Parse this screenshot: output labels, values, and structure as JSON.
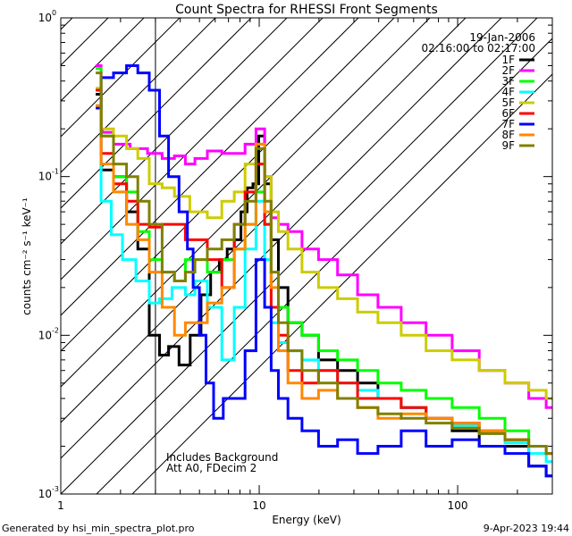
{
  "chart_data": {
    "type": "line",
    "title": "Count Spectra for RHESSI Front Segments",
    "xlabel": "Energy (keV)",
    "ylabel": "counts cm⁻² s⁻¹ keV⁻¹",
    "xscale": "log",
    "yscale": "log",
    "xlim": [
      1,
      300
    ],
    "ylim": [
      0.001,
      1
    ],
    "x_ticks": [
      {
        "value": 1,
        "label": "1"
      },
      {
        "value": 10,
        "label": "10"
      },
      {
        "value": 100,
        "label": "100"
      }
    ],
    "y_ticks": [
      {
        "value": 0.001,
        "base": "10",
        "exp": "-3"
      },
      {
        "value": 0.01,
        "base": "10",
        "exp": "-2"
      },
      {
        "value": 0.1,
        "base": "10",
        "exp": "-1"
      },
      {
        "value": 1,
        "base": "10",
        "exp": "0"
      }
    ],
    "hatch_upper_energy_keV": 3,
    "date": "19-Jan-2006",
    "time_range": "02:16:00 to 02:17:00",
    "annotations": [
      "Includes Background",
      "Att A0, FDecim 2"
    ],
    "series": [
      {
        "name": "1F",
        "color": "#000000",
        "values": [
          [
            1.5,
            0.33
          ],
          [
            1.7,
            0.11
          ],
          [
            2.0,
            0.1
          ],
          [
            2.3,
            0.06
          ],
          [
            2.6,
            0.035
          ],
          [
            3.0,
            0.01
          ],
          [
            3.3,
            0.0075
          ],
          [
            3.7,
            0.0085
          ],
          [
            4.2,
            0.0065
          ],
          [
            4.8,
            0.01
          ],
          [
            5.4,
            0.018
          ],
          [
            6,
            0.025
          ],
          [
            6.6,
            0.03
          ],
          [
            7.2,
            0.035
          ],
          [
            7.8,
            0.04
          ],
          [
            8.4,
            0.06
          ],
          [
            9,
            0.085
          ],
          [
            9.6,
            0.09
          ],
          [
            10.3,
            0.18
          ],
          [
            11,
            0.09
          ],
          [
            12,
            0.04
          ],
          [
            13,
            0.02
          ],
          [
            15,
            0.012
          ],
          [
            18,
            0.01
          ],
          [
            22,
            0.007
          ],
          [
            28,
            0.006
          ],
          [
            35,
            0.005
          ],
          [
            45,
            0.004
          ],
          [
            60,
            0.0035
          ],
          [
            80,
            0.003
          ],
          [
            110,
            0.0025
          ],
          [
            150,
            0.002
          ],
          [
            200,
            0.002
          ],
          [
            260,
            0.0015
          ],
          [
            300,
            0.0013
          ]
        ]
      },
      {
        "name": "2F",
        "color": "#ff00ff",
        "values": [
          [
            1.5,
            0.5
          ],
          [
            1.7,
            0.19
          ],
          [
            2.0,
            0.16
          ],
          [
            2.5,
            0.15
          ],
          [
            3,
            0.14
          ],
          [
            3.5,
            0.13
          ],
          [
            4,
            0.135
          ],
          [
            4.5,
            0.12
          ],
          [
            5,
            0.13
          ],
          [
            6,
            0.145
          ],
          [
            7,
            0.14
          ],
          [
            8,
            0.14
          ],
          [
            9,
            0.16
          ],
          [
            10.3,
            0.2
          ],
          [
            11,
            0.1
          ],
          [
            12,
            0.055
          ],
          [
            13,
            0.05
          ],
          [
            15,
            0.045
          ],
          [
            18,
            0.035
          ],
          [
            22,
            0.03
          ],
          [
            28,
            0.024
          ],
          [
            35,
            0.018
          ],
          [
            45,
            0.015
          ],
          [
            60,
            0.012
          ],
          [
            80,
            0.01
          ],
          [
            110,
            0.008
          ],
          [
            150,
            0.006
          ],
          [
            200,
            0.005
          ],
          [
            260,
            0.004
          ],
          [
            300,
            0.0035
          ]
        ]
      },
      {
        "name": "3F",
        "color": "#00ff00",
        "values": [
          [
            1.5,
            0.48
          ],
          [
            1.7,
            0.18
          ],
          [
            2.0,
            0.1
          ],
          [
            2.3,
            0.08
          ],
          [
            2.6,
            0.045
          ],
          [
            3,
            0.03
          ],
          [
            3.5,
            0.025
          ],
          [
            4,
            0.022
          ],
          [
            4.5,
            0.03
          ],
          [
            5,
            0.03
          ],
          [
            6,
            0.025
          ],
          [
            7,
            0.03
          ],
          [
            8,
            0.035
          ],
          [
            9,
            0.05
          ],
          [
            10.3,
            0.08
          ],
          [
            11,
            0.05
          ],
          [
            12,
            0.025
          ],
          [
            13,
            0.015
          ],
          [
            15,
            0.012
          ],
          [
            18,
            0.01
          ],
          [
            22,
            0.008
          ],
          [
            28,
            0.007
          ],
          [
            35,
            0.006
          ],
          [
            45,
            0.005
          ],
          [
            60,
            0.0045
          ],
          [
            80,
            0.004
          ],
          [
            110,
            0.0035
          ],
          [
            150,
            0.003
          ],
          [
            200,
            0.0025
          ],
          [
            260,
            0.002
          ],
          [
            300,
            0.0018
          ]
        ]
      },
      {
        "name": "4F",
        "color": "#00ffff",
        "values": [
          [
            1.5,
            0.28
          ],
          [
            1.7,
            0.07
          ],
          [
            1.9,
            0.043
          ],
          [
            2.2,
            0.03
          ],
          [
            2.6,
            0.022
          ],
          [
            3.0,
            0.016
          ],
          [
            3.3,
            0.017
          ],
          [
            4,
            0.02
          ],
          [
            4.5,
            0.018
          ],
          [
            5,
            0.022
          ],
          [
            6,
            0.015
          ],
          [
            7,
            0.007
          ],
          [
            8,
            0.015
          ],
          [
            9,
            0.035
          ],
          [
            10.3,
            0.07
          ],
          [
            11,
            0.03
          ],
          [
            12,
            0.012
          ],
          [
            13,
            0.009
          ],
          [
            15,
            0.008
          ],
          [
            18,
            0.007
          ],
          [
            22,
            0.006
          ],
          [
            28,
            0.005
          ],
          [
            35,
            0.0045
          ],
          [
            45,
            0.004
          ],
          [
            60,
            0.0035
          ],
          [
            80,
            0.003
          ],
          [
            110,
            0.0027
          ],
          [
            150,
            0.0024
          ],
          [
            200,
            0.0021
          ],
          [
            260,
            0.0018
          ],
          [
            300,
            0.0016
          ]
        ]
      },
      {
        "name": "5F",
        "color": "#cccc00",
        "values": [
          [
            1.5,
            0.36
          ],
          [
            1.7,
            0.2
          ],
          [
            2.0,
            0.18
          ],
          [
            2.3,
            0.15
          ],
          [
            2.6,
            0.13
          ],
          [
            3,
            0.09
          ],
          [
            3.5,
            0.085
          ],
          [
            4,
            0.075
          ],
          [
            5,
            0.06
          ],
          [
            6,
            0.055
          ],
          [
            7,
            0.07
          ],
          [
            8,
            0.08
          ],
          [
            9,
            0.12
          ],
          [
            10.3,
            0.16
          ],
          [
            11,
            0.1
          ],
          [
            12,
            0.06
          ],
          [
            13,
            0.045
          ],
          [
            15,
            0.035
          ],
          [
            18,
            0.025
          ],
          [
            22,
            0.02
          ],
          [
            28,
            0.017
          ],
          [
            35,
            0.014
          ],
          [
            45,
            0.012
          ],
          [
            60,
            0.01
          ],
          [
            80,
            0.008
          ],
          [
            110,
            0.007
          ],
          [
            150,
            0.006
          ],
          [
            200,
            0.005
          ],
          [
            260,
            0.0045
          ],
          [
            300,
            0.004
          ]
        ]
      },
      {
        "name": "6F",
        "color": "#ff0000",
        "values": [
          [
            1.5,
            0.35
          ],
          [
            1.7,
            0.14
          ],
          [
            2.0,
            0.09
          ],
          [
            2.3,
            0.07
          ],
          [
            2.6,
            0.05
          ],
          [
            3.0,
            0.048
          ],
          [
            3.5,
            0.05
          ],
          [
            4,
            0.05
          ],
          [
            4.5,
            0.04
          ],
          [
            5,
            0.04
          ],
          [
            6,
            0.03
          ],
          [
            7,
            0.02
          ],
          [
            8,
            0.05
          ],
          [
            9,
            0.08
          ],
          [
            10.3,
            0.12
          ],
          [
            11,
            0.05
          ],
          [
            12,
            0.015
          ],
          [
            13,
            0.01
          ],
          [
            15,
            0.006
          ],
          [
            18,
            0.005
          ],
          [
            22,
            0.006
          ],
          [
            28,
            0.005
          ],
          [
            35,
            0.004
          ],
          [
            45,
            0.004
          ],
          [
            60,
            0.0035
          ],
          [
            80,
            0.003
          ],
          [
            110,
            0.0028
          ],
          [
            150,
            0.0025
          ],
          [
            200,
            0.0022
          ],
          [
            260,
            0.002
          ],
          [
            300,
            0.0018
          ]
        ]
      },
      {
        "name": "7F",
        "color": "#0000ff",
        "values": [
          [
            1.5,
            0.27
          ],
          [
            1.7,
            0.42
          ],
          [
            2.0,
            0.45
          ],
          [
            2.3,
            0.5
          ],
          [
            2.6,
            0.45
          ],
          [
            3.0,
            0.35
          ],
          [
            3.3,
            0.18
          ],
          [
            3.7,
            0.1
          ],
          [
            4.2,
            0.06
          ],
          [
            4.5,
            0.035
          ],
          [
            4.8,
            0.02
          ],
          [
            5.2,
            0.01
          ],
          [
            5.6,
            0.005
          ],
          [
            6.2,
            0.003
          ],
          [
            7,
            0.004
          ],
          [
            8,
            0.004
          ],
          [
            9,
            0.008
          ],
          [
            10.3,
            0.03
          ],
          [
            11,
            0.015
          ],
          [
            12,
            0.006
          ],
          [
            13,
            0.004
          ],
          [
            15,
            0.003
          ],
          [
            18,
            0.0025
          ],
          [
            22,
            0.002
          ],
          [
            28,
            0.0022
          ],
          [
            35,
            0.0018
          ],
          [
            45,
            0.002
          ],
          [
            60,
            0.0025
          ],
          [
            80,
            0.002
          ],
          [
            110,
            0.0022
          ],
          [
            150,
            0.002
          ],
          [
            200,
            0.0018
          ],
          [
            260,
            0.0015
          ],
          [
            300,
            0.0013
          ]
        ]
      },
      {
        "name": "8F",
        "color": "#ff8800",
        "values": [
          [
            1.5,
            0.28
          ],
          [
            1.7,
            0.12
          ],
          [
            2.0,
            0.08
          ],
          [
            2.3,
            0.05
          ],
          [
            2.6,
            0.04
          ],
          [
            3.0,
            0.025
          ],
          [
            3.5,
            0.015
          ],
          [
            4,
            0.01
          ],
          [
            4.5,
            0.012
          ],
          [
            5,
            0.012
          ],
          [
            6,
            0.016
          ],
          [
            7,
            0.02
          ],
          [
            8,
            0.035
          ],
          [
            9,
            0.05
          ],
          [
            10.3,
            0.16
          ],
          [
            11,
            0.06
          ],
          [
            12,
            0.02
          ],
          [
            13,
            0.008
          ],
          [
            15,
            0.005
          ],
          [
            18,
            0.004
          ],
          [
            22,
            0.0045
          ],
          [
            28,
            0.004
          ],
          [
            35,
            0.0035
          ],
          [
            45,
            0.003
          ],
          [
            60,
            0.0032
          ],
          [
            80,
            0.003
          ],
          [
            110,
            0.0028
          ],
          [
            150,
            0.0025
          ],
          [
            200,
            0.0022
          ],
          [
            260,
            0.002
          ],
          [
            300,
            0.0018
          ]
        ]
      },
      {
        "name": "9F",
        "color": "#808000",
        "values": [
          [
            1.5,
            0.45
          ],
          [
            1.7,
            0.18
          ],
          [
            2.0,
            0.12
          ],
          [
            2.3,
            0.1
          ],
          [
            2.6,
            0.07
          ],
          [
            3.0,
            0.05
          ],
          [
            3.5,
            0.025
          ],
          [
            4,
            0.022
          ],
          [
            4.5,
            0.025
          ],
          [
            5,
            0.03
          ],
          [
            6,
            0.035
          ],
          [
            7,
            0.04
          ],
          [
            8,
            0.05
          ],
          [
            9,
            0.07
          ],
          [
            10.3,
            0.15
          ],
          [
            11,
            0.07
          ],
          [
            12,
            0.025
          ],
          [
            13,
            0.012
          ],
          [
            15,
            0.008
          ],
          [
            18,
            0.006
          ],
          [
            22,
            0.005
          ],
          [
            28,
            0.004
          ],
          [
            35,
            0.0035
          ],
          [
            45,
            0.0032
          ],
          [
            60,
            0.003
          ],
          [
            80,
            0.0028
          ],
          [
            110,
            0.0026
          ],
          [
            150,
            0.0024
          ],
          [
            200,
            0.0022
          ],
          [
            260,
            0.002
          ],
          [
            300,
            0.0018
          ]
        ]
      }
    ]
  },
  "footer": {
    "left": "Generated by hsi_min_spectra_plot.pro",
    "right": "9-Apr-2023 19:44"
  }
}
